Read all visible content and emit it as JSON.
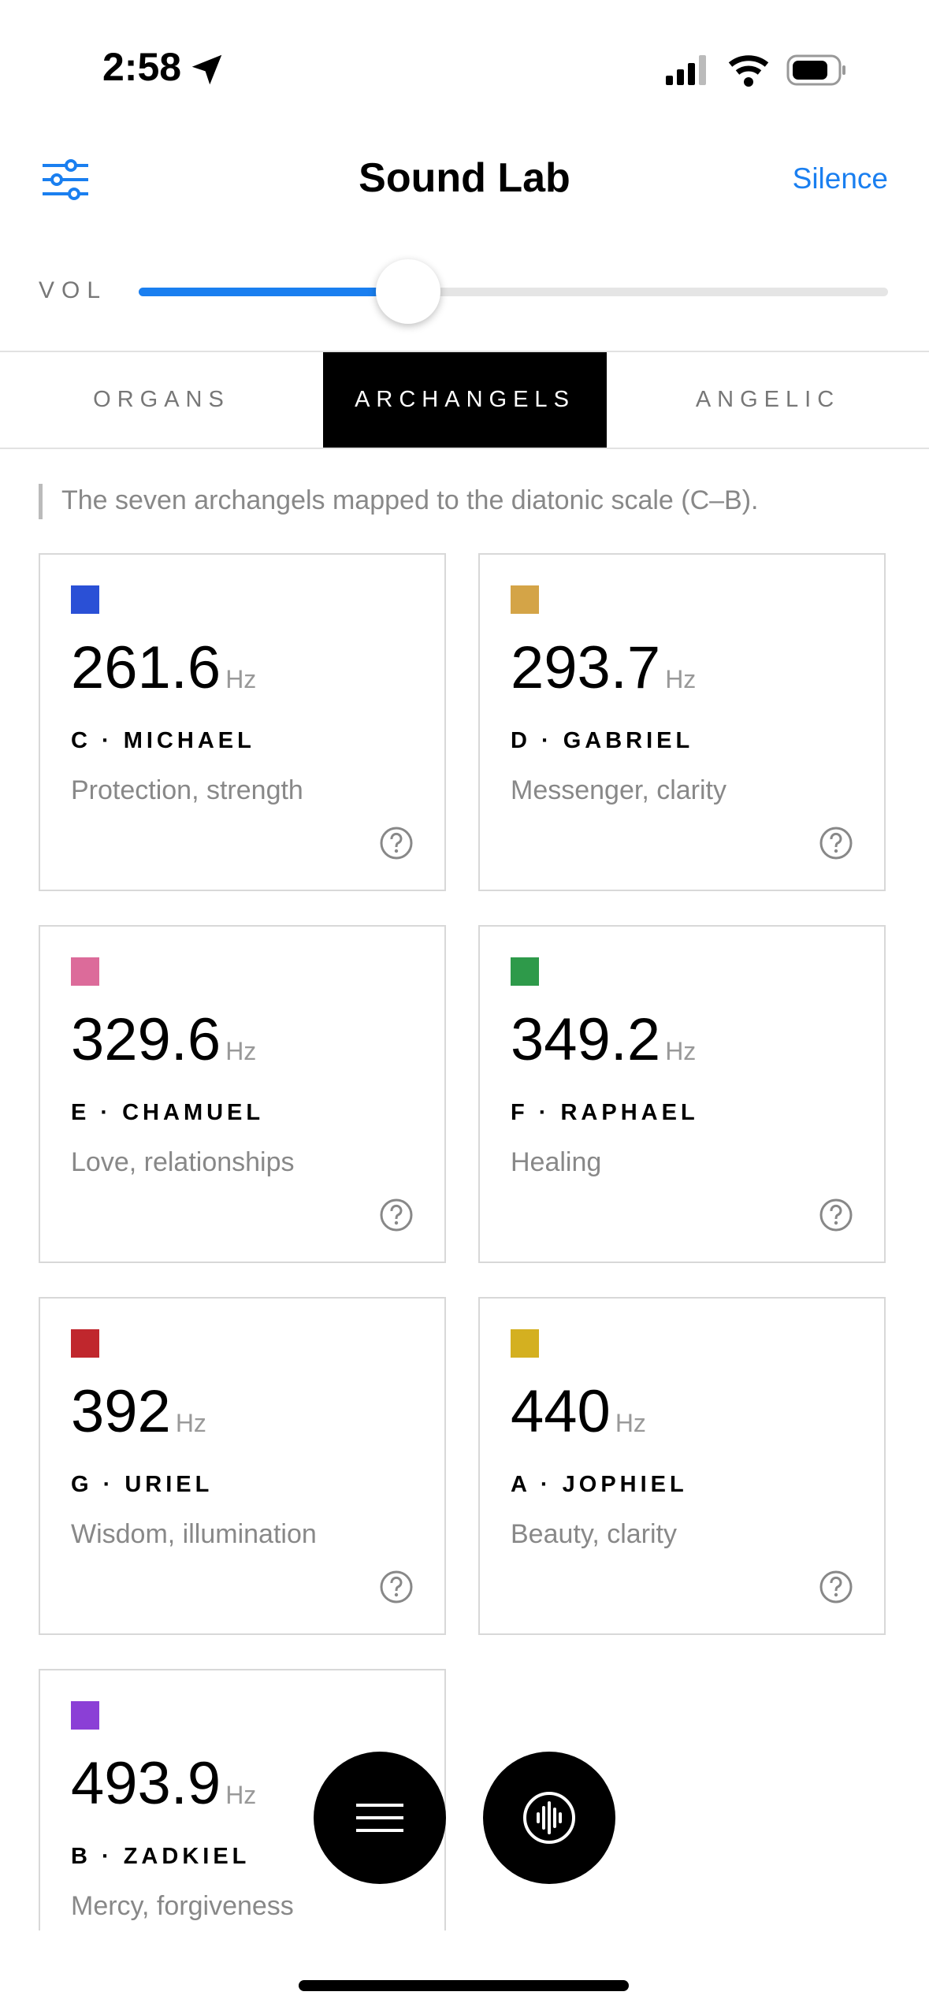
{
  "status_bar": {
    "time": "2:58"
  },
  "header": {
    "title": "Sound Lab",
    "action": "Silence"
  },
  "volume": {
    "label": "VOL",
    "value": 36
  },
  "tabs": [
    {
      "label": "ORGANS",
      "active": false
    },
    {
      "label": "ARCHANGELS",
      "active": true
    },
    {
      "label": "ANGELIC",
      "active": false
    }
  ],
  "description": "The seven archangels mapped to the diatonic scale (C–B).",
  "cards": [
    {
      "color": "#2a50d6",
      "frequency": 261.6,
      "unit": "Hz",
      "label": "C · MICHAEL",
      "text": "Protection, strength"
    },
    {
      "color": "#d4a447",
      "frequency": 293.7,
      "unit": "Hz",
      "label": "D · GABRIEL",
      "text": "Messenger, clarity"
    },
    {
      "color": "#dc6b9a",
      "frequency": 329.6,
      "unit": "Hz",
      "label": "E · CHAMUEL",
      "text": "Love, relationships"
    },
    {
      "color": "#2e9a4a",
      "frequency": 349.2,
      "unit": "Hz",
      "label": "F · RAPHAEL",
      "text": "Healing"
    },
    {
      "color": "#c0272d",
      "frequency": 392,
      "unit": "Hz",
      "label": "G · URIEL",
      "text": "Wisdom, illumination"
    },
    {
      "color": "#d4b020",
      "frequency": 440,
      "unit": "Hz",
      "label": "A · JOPHIEL",
      "text": "Beauty, clarity"
    },
    {
      "color": "#8b3fd6",
      "frequency": 493.9,
      "unit": "Hz",
      "label": "B · ZADKIEL",
      "text": "Mercy, forgiveness"
    }
  ]
}
